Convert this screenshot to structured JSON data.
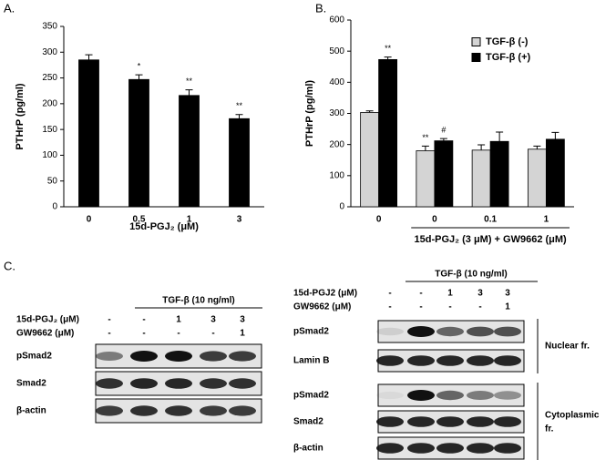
{
  "panel_labels": [
    "A.",
    "B.",
    "C."
  ],
  "chart_data": [
    {
      "type": "bar",
      "xlabel": "15d-PGJ₂ (μM)",
      "ylabel": "PTHrP (pg/ml)",
      "categories": [
        "0",
        "0.5",
        "1",
        "3"
      ],
      "ylim": [
        0,
        350
      ],
      "yticks": [
        0,
        50,
        100,
        150,
        200,
        250,
        300,
        350
      ],
      "series": [
        {
          "color": "#000000",
          "values": [
            285,
            247,
            216,
            171
          ],
          "errors": [
            10,
            9,
            11,
            8
          ],
          "annotations": [
            null,
            "*",
            "**",
            "**"
          ]
        }
      ]
    },
    {
      "type": "bar",
      "xlabel": "15d-PGJ₂ (3 μM) + GW9662 (μM)",
      "ylabel": "PTHrP (pg/ml)",
      "categories": [
        "0",
        "0",
        "0.1",
        "1"
      ],
      "ylim": [
        0,
        600
      ],
      "yticks": [
        0,
        100,
        200,
        300,
        400,
        500,
        600
      ],
      "legend": "upper right",
      "series": [
        {
          "name": "TGF-β (-)",
          "color": "#d4d4d4",
          "values": [
            303,
            180,
            182,
            185
          ],
          "errors": [
            5,
            15,
            17,
            10
          ],
          "annotations": [
            null,
            "**",
            null,
            null
          ]
        },
        {
          "name": "TGF-β (+)",
          "color": "#000000",
          "values": [
            473,
            212,
            210,
            217
          ],
          "errors": [
            8,
            7,
            30,
            22
          ],
          "annotations": [
            "**",
            "#",
            null,
            null
          ]
        }
      ]
    }
  ],
  "blots": {
    "left": {
      "header": "TGF-β (10 ng/ml)",
      "conditions": [
        {
          "label": "15d-PGJ₂ (μM)",
          "values": [
            "-",
            "-",
            "1",
            "3",
            "3"
          ]
        },
        {
          "label": "GW9662 (μM)",
          "values": [
            "-",
            "-",
            "-",
            "-",
            "1"
          ]
        }
      ],
      "rows": [
        "pSmad2",
        "Smad2",
        "β-actin"
      ]
    },
    "right": {
      "header": "TGF-β (10 ng/ml)",
      "conditions": [
        {
          "label": "15d-PGJ2 (μM)",
          "values": [
            "-",
            "-",
            "1",
            "3",
            "3"
          ]
        },
        {
          "label": "GW9662 (μM)",
          "values": [
            "-",
            "-",
            "-",
            "-",
            "1"
          ]
        }
      ],
      "groups": [
        {
          "label": [
            "Nuclear fr."
          ],
          "rows": [
            "pSmad2",
            "Lamin B"
          ]
        },
        {
          "label": [
            "Cytoplasmic",
            "fr."
          ],
          "rows": [
            "pSmad2",
            "Smad2",
            "β-actin"
          ]
        }
      ]
    }
  }
}
